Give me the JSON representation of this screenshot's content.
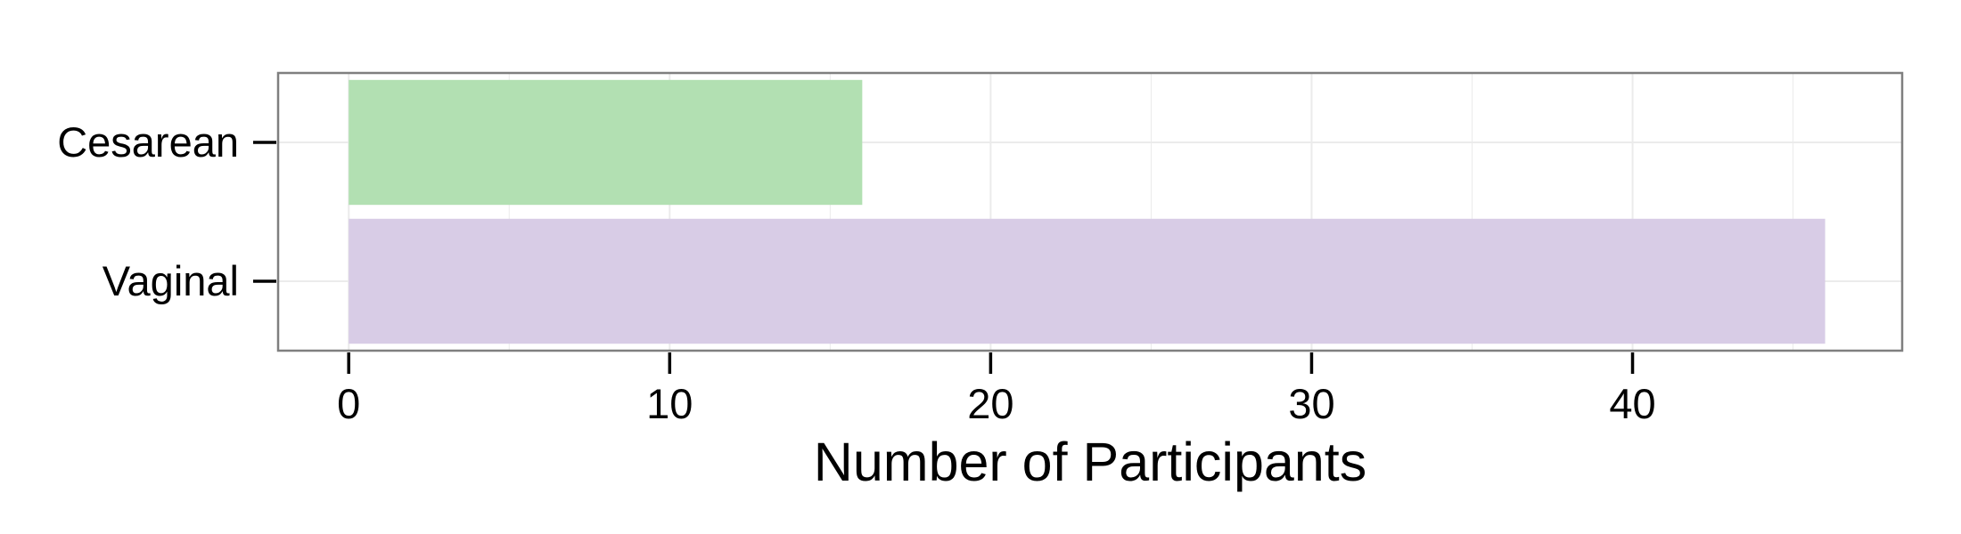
{
  "chart_data": {
    "type": "bar",
    "orientation": "horizontal",
    "categories": [
      "Vaginal",
      "Cesarean"
    ],
    "values": [
      46,
      16
    ],
    "xlabel": "Number of Participants",
    "ylabel": "",
    "xlim": [
      -2.2,
      48.4
    ],
    "xticks": [
      "0",
      "10",
      "20",
      "30",
      "40"
    ],
    "grid": true,
    "bar_colors": [
      "#d8cce6",
      "#b2e0b2"
    ],
    "panel_border_color": "#7f7f7f",
    "grid_color": "#ebebeb"
  }
}
